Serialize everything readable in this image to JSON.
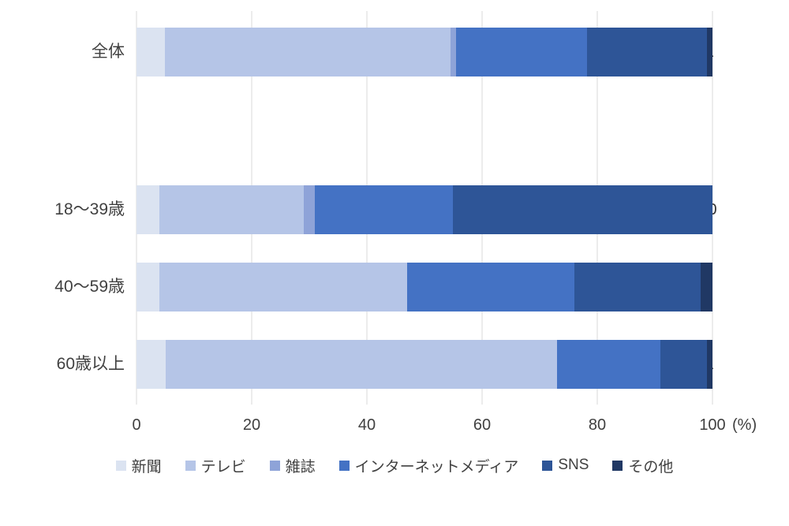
{
  "chart_data": {
    "type": "bar",
    "variant": "horizontal-stacked-100",
    "title": "",
    "categories": [
      "全体",
      "18〜39歳",
      "40〜59歳",
      "60歳以上"
    ],
    "series": [
      {
        "name": "新聞",
        "color": "#dbe3f1",
        "values": [
          5,
          4,
          4,
          5
        ]
      },
      {
        "name": "テレビ",
        "color": "#b5c5e7",
        "values": [
          50,
          25,
          43,
          68
        ]
      },
      {
        "name": "雑誌",
        "color": "#8ea3d8",
        "values": [
          1,
          2,
          0,
          0
        ]
      },
      {
        "name": "インターネットメディア",
        "color": "#4472c4",
        "values": [
          23,
          24,
          29,
          18
        ]
      },
      {
        "name": "SNS",
        "color": "#2e5597",
        "values": [
          21,
          45,
          22,
          8
        ]
      },
      {
        "name": "その他",
        "color": "#203864",
        "values": [
          1,
          0,
          2,
          1
        ]
      }
    ],
    "x_axis": {
      "range": [
        0,
        100
      ],
      "ticks": [
        0,
        20,
        40,
        60,
        80,
        100
      ],
      "unit_label": "(%)",
      "gridlines": true,
      "gridline_color": "#d9d9d9"
    },
    "legend_position": "bottom",
    "data_label_color": "#333333",
    "axis_text_color": "#404040"
  }
}
